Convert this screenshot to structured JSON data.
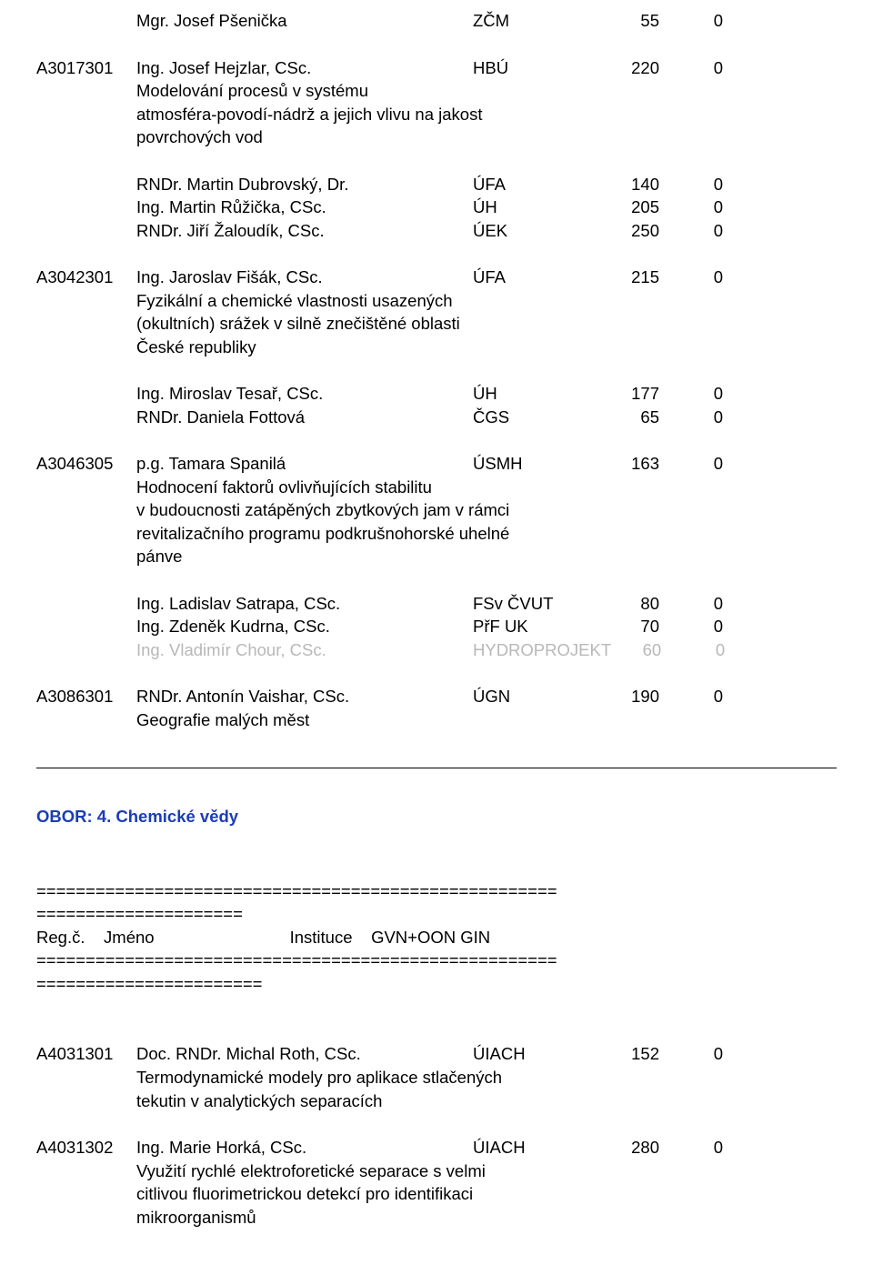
{
  "top": {
    "r1": {
      "name": "Mgr. Josef Pšenička",
      "inst": "ZČM",
      "v1": "55",
      "v2": "0"
    }
  },
  "g1": {
    "code": "A3017301",
    "lead": {
      "name": "Ing. Josef Hejzlar, CSc.",
      "inst": "HBÚ",
      "v1": "220",
      "v2": "0"
    },
    "desc": "Modelování procesů v systému\natmosféra-povodí-nádrž a jejich vlivu na jakost\npovrchových vod",
    "team": [
      {
        "name": "RNDr. Martin Dubrovský, Dr.",
        "inst": "ÚFA",
        "v1": "140",
        "v2": "0"
      },
      {
        "name": "Ing. Martin Růžička, CSc.",
        "inst": "ÚH",
        "v1": "205",
        "v2": "0"
      },
      {
        "name": "RNDr. Jiří Žaloudík, CSc.",
        "inst": "ÚEK",
        "v1": "250",
        "v2": "0"
      }
    ]
  },
  "g2": {
    "code": "A3042301",
    "lead": {
      "name": "Ing. Jaroslav Fišák, CSc.",
      "inst": "ÚFA",
      "v1": "215",
      "v2": "0"
    },
    "desc": "Fyzikální a chemické vlastnosti usazených\n(okultních) srážek v silně znečištěné oblasti\nČeské republiky",
    "team": [
      {
        "name": "Ing. Miroslav Tesař, CSc.",
        "inst": "ÚH",
        "v1": "177",
        "v2": "0"
      },
      {
        "name": "RNDr. Daniela Fottová",
        "inst": "ČGS",
        "v1": "65",
        "v2": "0"
      }
    ]
  },
  "g3": {
    "code": "A3046305",
    "lead": {
      "name": "p.g. Tamara Spanilá",
      "inst": "ÚSMH",
      "v1": "163",
      "v2": "0"
    },
    "desc": "Hodnocení faktorů ovlivňujících stabilitu\nv budoucnosti zatápěných zbytkových jam v rámci\nrevitalizačního programu podkrušnohorské uhelné\npánve",
    "team": [
      {
        "name": "Ing. Ladislav Satrapa, CSc.",
        "inst": "FSv ČVUT",
        "v1": "80",
        "v2": "0"
      },
      {
        "name": "Ing. Zdeněk Kudrna, CSc.",
        "inst": "PřF UK",
        "v1": "70",
        "v2": "0"
      }
    ],
    "faded": {
      "name": "Ing. Vladimír Chour, CSc.",
      "inst": "HYDROPROJEKT",
      "v1": "60",
      "v2": "0"
    }
  },
  "g4": {
    "code": "A3086301",
    "lead": {
      "name": "RNDr. Antonín Vaishar, CSc.",
      "inst": "ÚGN",
      "v1": "190",
      "v2": "0"
    },
    "desc": "Geografie malých měst"
  },
  "obor": "OBOR:  4.  Chemické vědy",
  "eq1": "=====================================================",
  "eq2": "=====================",
  "hdr": "Reg.č.    Jméno                             Instituce    GVN+OON GIN",
  "eq3": "=====================================================",
  "eq4": "=======================",
  "b1": {
    "code": "A4031301",
    "lead": {
      "name": "Doc. RNDr. Michal Roth, CSc.",
      "inst": "ÚIACH",
      "v1": "152",
      "v2": "0"
    },
    "desc": "Termodynamické modely pro aplikace stlačených\ntekutin v analytických separacích"
  },
  "b2": {
    "code": "A4031302",
    "lead": {
      "name": "Ing. Marie Horká, CSc.",
      "inst": "ÚIACH",
      "v1": "280",
      "v2": "0"
    },
    "desc": "Využití rychlé elektroforetické separace s velmi\ncitlivou fluorimetrickou detekcí pro identifikaci\nmikroorganismů"
  }
}
